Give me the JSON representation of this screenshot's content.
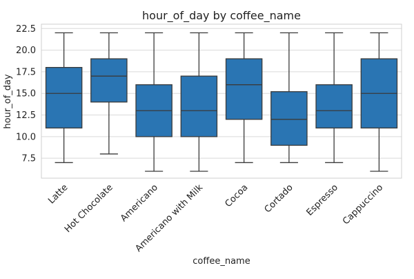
{
  "chart_data": {
    "type": "box",
    "title": "hour_of_day by coffee_name",
    "xlabel": "coffee_name",
    "ylabel": "hour_of_day",
    "ylim": [
      5.2,
      23.0
    ],
    "yticks": [
      7.5,
      10.0,
      12.5,
      15.0,
      17.5,
      20.0,
      22.5
    ],
    "ytick_labels": [
      "7.5",
      "10.0",
      "12.5",
      "15.0",
      "17.5",
      "20.0",
      "22.5"
    ],
    "grid": "horizontal",
    "box_color": "#2a75b3",
    "categories": [
      "Latte",
      "Hot Chocolate",
      "Americano",
      "Americano with Milk",
      "Cocoa",
      "Cortado",
      "Espresso",
      "Cappuccino"
    ],
    "boxes": [
      {
        "category": "Latte",
        "min": 7,
        "q1": 11,
        "median": 15,
        "q3": 18,
        "max": 22
      },
      {
        "category": "Hot Chocolate",
        "min": 8,
        "q1": 14,
        "median": 17,
        "q3": 19,
        "max": 22
      },
      {
        "category": "Americano",
        "min": 6,
        "q1": 10,
        "median": 13,
        "q3": 16,
        "max": 22
      },
      {
        "category": "Americano with Milk",
        "min": 6,
        "q1": 10,
        "median": 13,
        "q3": 17,
        "max": 22
      },
      {
        "category": "Cocoa",
        "min": 7,
        "q1": 12,
        "median": 16,
        "q3": 19,
        "max": 22
      },
      {
        "category": "Cortado",
        "min": 7,
        "q1": 9,
        "median": 12,
        "q3": 15.2,
        "max": 22
      },
      {
        "category": "Espresso",
        "min": 7,
        "q1": 11,
        "median": 13,
        "q3": 16,
        "max": 22
      },
      {
        "category": "Cappuccino",
        "min": 6,
        "q1": 11,
        "median": 15,
        "q3": 19,
        "max": 22
      }
    ]
  }
}
